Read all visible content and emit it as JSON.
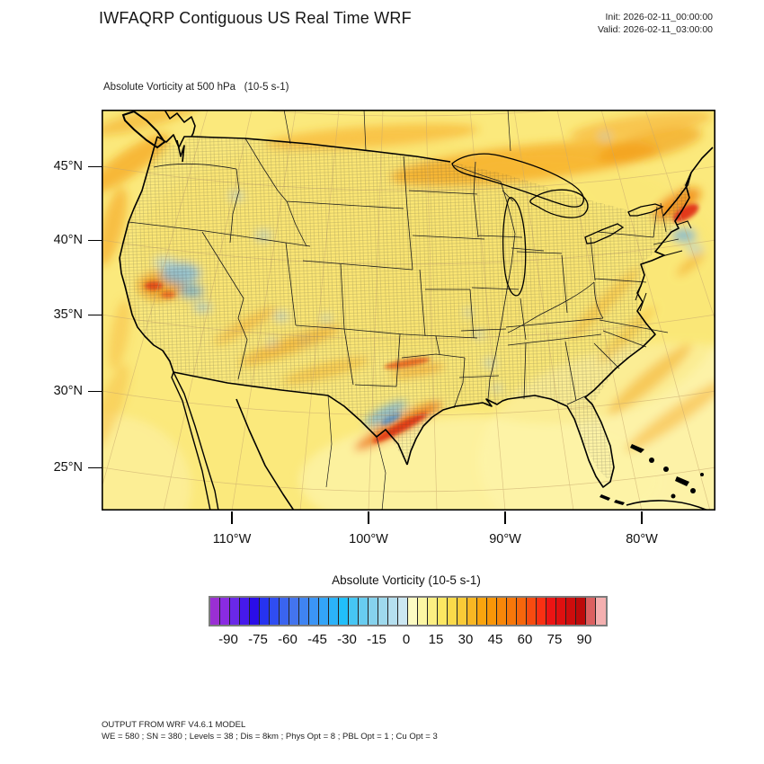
{
  "header": {
    "title": "IWFAQRP Contiguous US Real Time WRF",
    "init": "Init: 2026-02-11_00:00:00",
    "valid": "Valid: 2026-02-11_03:00:00"
  },
  "map": {
    "subtitle": "Absolute Vorticity at 500 hPa   (10-5 s-1)",
    "lat_ticks": [
      "45°N",
      "40°N",
      "35°N",
      "30°N",
      "25°N"
    ],
    "lon_ticks": [
      "110°W",
      "100°W",
      "90°W",
      "80°W"
    ]
  },
  "colorbar": {
    "title": "Absolute Vorticity  (10-5 s-1)",
    "tick_labels": [
      "-90",
      "-75",
      "-60",
      "-45",
      "-30",
      "-15",
      "0",
      "15",
      "30",
      "45",
      "60",
      "75",
      "90"
    ],
    "cell_colors": [
      "#9A2FD4",
      "#8A2BE2",
      "#6A28E8",
      "#4619EC",
      "#2A0DE8",
      "#2633F0",
      "#2F4DF2",
      "#3A64F0",
      "#4374EE",
      "#3F84F2",
      "#3B95F6",
      "#33A5F8",
      "#2BB3FA",
      "#21BFFA",
      "#46C6F4",
      "#68CCF0",
      "#86D2ED",
      "#9ED9ED",
      "#B5DFEF",
      "#CCE7F2",
      "#FDFBC2",
      "#FCF6A3",
      "#FCEF82",
      "#FCE762",
      "#FBDA4A",
      "#FACB37",
      "#F9B723",
      "#FAA40E",
      "#F99608",
      "#F88709",
      "#F7770A",
      "#F6660C",
      "#F74B10",
      "#F93013",
      "#EC1414",
      "#DF1010",
      "#CE0D0D",
      "#BD0A0A",
      "#DC6060",
      "#F4AFAF"
    ]
  },
  "footer": {
    "line1": "OUTPUT FROM WRF V4.6.1 MODEL",
    "line2": "WE = 580 ; SN = 380 ; Levels = 38 ; Dis = 8km ; Phys Opt = 8 ; PBL Opt = 1 ; Cu Opt = 3"
  },
  "chart_data": {
    "type": "heatmap",
    "title": "Absolute Vorticity at 500 hPa",
    "units": "10-5 s-1",
    "init_time": "2026-02-11_00:00:00",
    "valid_time": "2026-02-11_03:00:00",
    "value_range": [
      -100,
      100
    ],
    "bin_width": 5,
    "colorbar_ticks": [
      -90,
      -75,
      -60,
      -45,
      -30,
      -15,
      0,
      15,
      30,
      45,
      60,
      75,
      90
    ],
    "lat_axis_ticks_deg_n": [
      45,
      40,
      35,
      30,
      25
    ],
    "lon_axis_ticks_deg_w": [
      110,
      100,
      90,
      80
    ],
    "field_summary": [
      {
        "region": "most of CONUS domain background",
        "approx_value": "5 to 15"
      },
      {
        "region": "southern Canada / Great Lakes band",
        "approx_value": "20 to 35"
      },
      {
        "region": "northern California / Nevada swirl",
        "approx_value": "-30 to +40 mixed"
      },
      {
        "region": "central Texas streak",
        "approx_value": "35 to 60 with adjacent -20 band"
      },
      {
        "region": "Oklahoma short streak",
        "approx_value": "30 to 50"
      },
      {
        "region": "New England coastal spot",
        "approx_value": "40 to 70"
      },
      {
        "region": "Gulf of Mexico and western Atlantic",
        "approx_value": "0 to 8"
      }
    ]
  }
}
